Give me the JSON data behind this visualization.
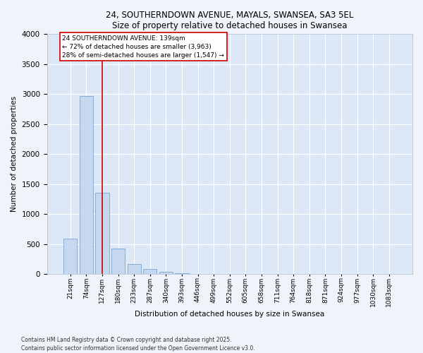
{
  "title_line1": "24, SOUTHERNDOWN AVENUE, MAYALS, SWANSEA, SA3 5EL",
  "title_line2": "Size of property relative to detached houses in Swansea",
  "xlabel": "Distribution of detached houses by size in Swansea",
  "ylabel": "Number of detached properties",
  "bar_labels": [
    "21sqm",
    "74sqm",
    "127sqm",
    "180sqm",
    "233sqm",
    "287sqm",
    "340sqm",
    "393sqm",
    "446sqm",
    "499sqm",
    "552sqm",
    "605sqm",
    "658sqm",
    "711sqm",
    "764sqm",
    "818sqm",
    "871sqm",
    "924sqm",
    "977sqm",
    "1030sqm",
    "1083sqm"
  ],
  "bar_values": [
    590,
    2970,
    1350,
    430,
    170,
    85,
    40,
    15,
    0,
    0,
    0,
    0,
    0,
    0,
    0,
    0,
    0,
    0,
    0,
    0,
    0
  ],
  "bar_color": "#c5d8ef",
  "bar_edge_color": "#6699cc",
  "vline_x_index": 2,
  "vline_color": "#cc0000",
  "annotation_text": "24 SOUTHERNDOWN AVENUE: 139sqm\n← 72% of detached houses are smaller (3,963)\n28% of semi-detached houses are larger (1,547) →",
  "annotation_box_edge": "#cc0000",
  "ylim": [
    0,
    4000
  ],
  "yticks": [
    0,
    500,
    1000,
    1500,
    2000,
    2500,
    3000,
    3500,
    4000
  ],
  "plot_bg_color": "#dce8f5",
  "fig_bg_color": "#f0f4fa",
  "grid_color": "#ffffff",
  "footer_text": "Contains HM Land Registry data © Crown copyright and database right 2025.\nContains public sector information licensed under the Open Government Licence v3.0.",
  "fig_width": 6.0,
  "fig_height": 5.0,
  "dpi": 100
}
